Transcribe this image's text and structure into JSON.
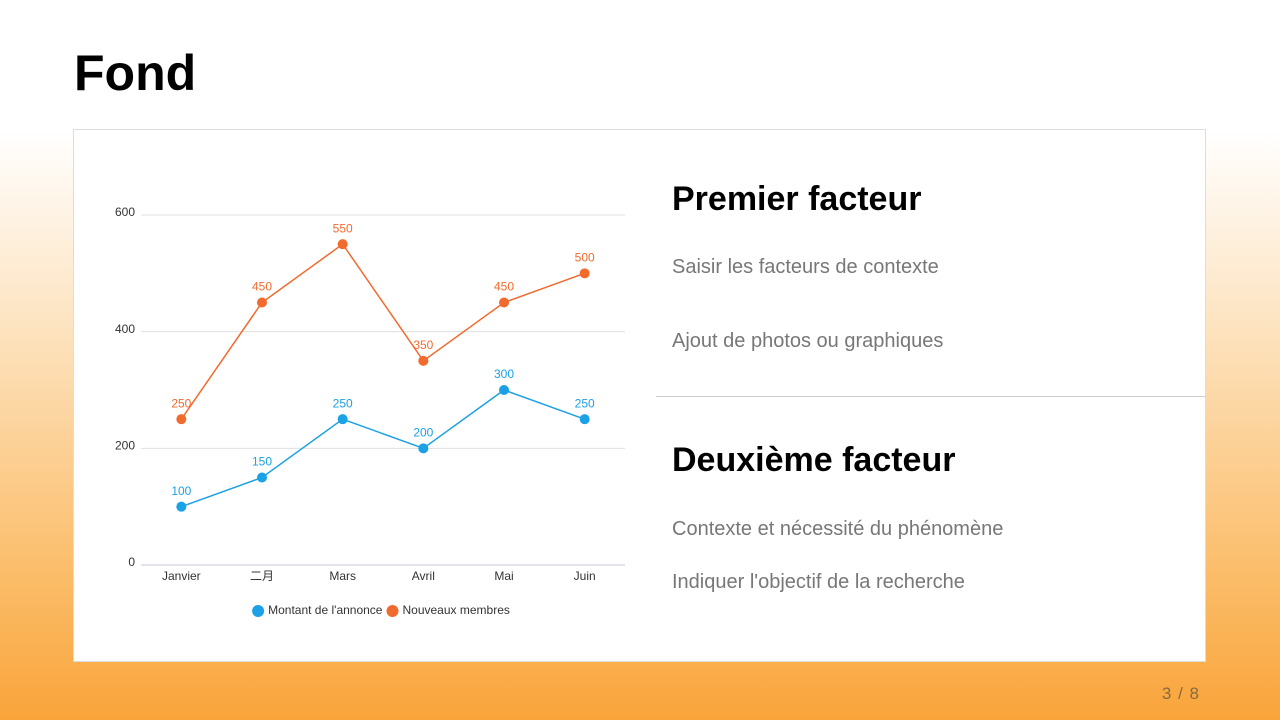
{
  "title": "Fond",
  "chart_data": {
    "type": "line",
    "categories": [
      "Janvier",
      "二月",
      "Mars",
      "Avril",
      "Mai",
      "Juin"
    ],
    "series": [
      {
        "name": "Montant de l'annonce",
        "color": "#1ba1e6",
        "values": [
          100,
          150,
          250,
          200,
          300,
          250
        ]
      },
      {
        "name": "Nouveaux membres",
        "color": "#f26b2e",
        "values": [
          250,
          450,
          550,
          350,
          450,
          500
        ]
      }
    ],
    "ylim": [
      0,
      600
    ],
    "yticks": [
      0,
      200,
      400,
      600
    ],
    "grid": true,
    "legend": "bottom"
  },
  "sections": [
    {
      "heading": "Premier facteur",
      "items": [
        "Saisir les facteurs de contexte",
        "Ajout de photos ou graphiques"
      ]
    },
    {
      "heading": "Deuxième facteur",
      "items": [
        "Contexte et nécessité du phénomène",
        "Indiquer l'objectif de la recherche"
      ]
    }
  ],
  "page_number": "3 / 8"
}
